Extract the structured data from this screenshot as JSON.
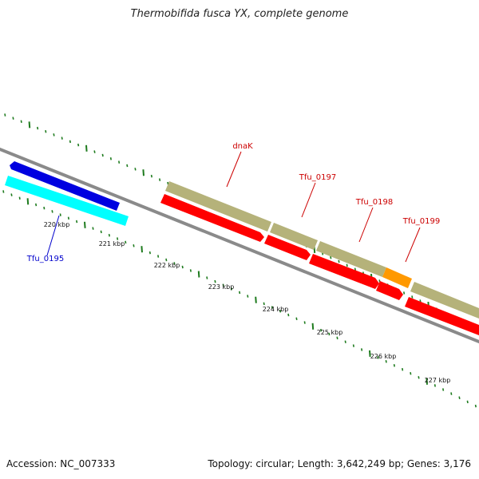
{
  "title": "Thermobifida fusca YX, complete genome",
  "footer": {
    "accession": "Accession: NC_007333",
    "summary": "Topology: circular; Length: 3,642,249 bp; Genes: 3,176"
  },
  "colors": {
    "backbone": "#8a8a8a",
    "tick_green": "#1e7b1e",
    "forward_cds": "#b5b27a",
    "reverse_cds": "#ff0000",
    "rna": "#ff9900",
    "blue_cds": "#0000e0",
    "cyan_cds": "#00ffff",
    "label_red": "#cc0000",
    "label_blue": "#0000cc"
  },
  "scale_labels": [
    "220 kbp",
    "221 kbp",
    "222 kbp",
    "223 kbp",
    "224 kbp",
    "225 kbp",
    "226 kbp",
    "227 kbp"
  ],
  "genes": [
    {
      "name": "Tfu_0195",
      "color_key": "blue_cds"
    },
    {
      "name": "dnaK",
      "color_key": "label_red"
    },
    {
      "name": "Tfu_0197",
      "color_key": "label_red"
    },
    {
      "name": "Tfu_0198",
      "color_key": "label_red"
    },
    {
      "name": "Tfu_0199",
      "color_key": "label_red"
    }
  ]
}
